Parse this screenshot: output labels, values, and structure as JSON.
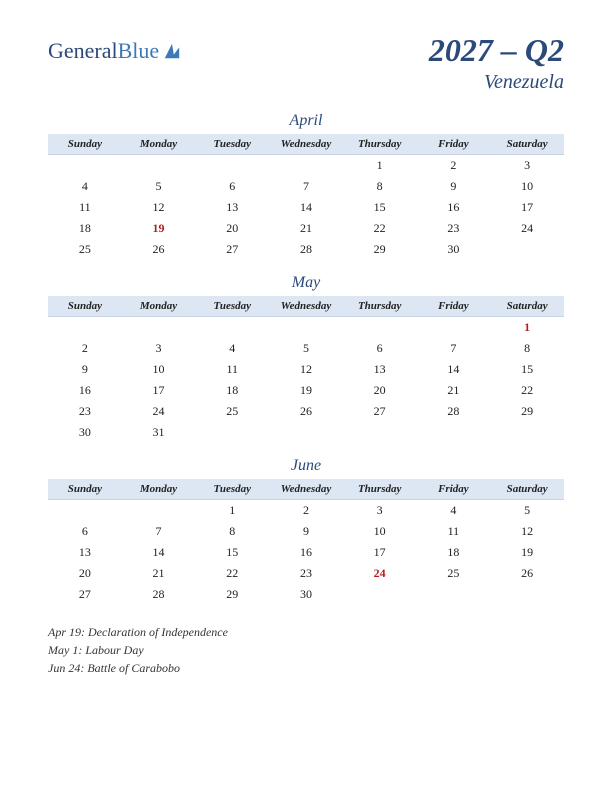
{
  "logo": {
    "text1": "General",
    "text2": "Blue"
  },
  "header": {
    "quarter": "2027 – Q2",
    "country": "Venezuela"
  },
  "weekdays": [
    "Sunday",
    "Monday",
    "Tuesday",
    "Wednesday",
    "Thursday",
    "Friday",
    "Saturday"
  ],
  "months": [
    {
      "name": "April",
      "weeks": [
        [
          "",
          "",
          "",
          "",
          "1",
          "2",
          "3"
        ],
        [
          "4",
          "5",
          "6",
          "7",
          "8",
          "9",
          "10"
        ],
        [
          "11",
          "12",
          "13",
          "14",
          "15",
          "16",
          "17"
        ],
        [
          "18",
          "19",
          "20",
          "21",
          "22",
          "23",
          "24"
        ],
        [
          "25",
          "26",
          "27",
          "28",
          "29",
          "30",
          ""
        ]
      ],
      "holidays": [
        {
          "week": 3,
          "day": 1
        }
      ]
    },
    {
      "name": "May",
      "weeks": [
        [
          "",
          "",
          "",
          "",
          "",
          "",
          "1"
        ],
        [
          "2",
          "3",
          "4",
          "5",
          "6",
          "7",
          "8"
        ],
        [
          "9",
          "10",
          "11",
          "12",
          "13",
          "14",
          "15"
        ],
        [
          "16",
          "17",
          "18",
          "19",
          "20",
          "21",
          "22"
        ],
        [
          "23",
          "24",
          "25",
          "26",
          "27",
          "28",
          "29"
        ],
        [
          "30",
          "31",
          "",
          "",
          "",
          "",
          ""
        ]
      ],
      "holidays": [
        {
          "week": 0,
          "day": 6
        }
      ]
    },
    {
      "name": "June",
      "weeks": [
        [
          "",
          "",
          "1",
          "2",
          "3",
          "4",
          "5"
        ],
        [
          "6",
          "7",
          "8",
          "9",
          "10",
          "11",
          "12"
        ],
        [
          "13",
          "14",
          "15",
          "16",
          "17",
          "18",
          "19"
        ],
        [
          "20",
          "21",
          "22",
          "23",
          "24",
          "25",
          "26"
        ],
        [
          "27",
          "28",
          "29",
          "30",
          "",
          "",
          ""
        ]
      ],
      "holidays": [
        {
          "week": 3,
          "day": 4
        }
      ]
    }
  ],
  "holiday_list": [
    "Apr 19: Declaration of Independence",
    "May 1: Labour Day",
    "Jun 24: Battle of Carabobo"
  ],
  "colors": {
    "header_bg": "#dde6f3",
    "text_blue": "#2b4a7a",
    "holiday_red": "#b02020"
  }
}
